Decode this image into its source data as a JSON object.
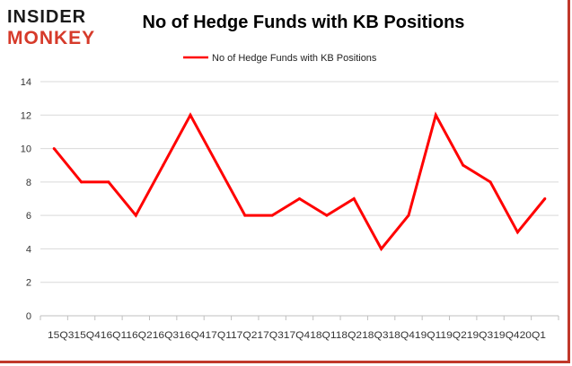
{
  "logo": {
    "line1": "INSIDER",
    "line2": "MONKEY",
    "colors": {
      "text": "#1a1a1a",
      "accent": "#d63a2a"
    }
  },
  "chart_data": {
    "type": "line",
    "title": "No of Hedge Funds with KB Positions",
    "xlabel": "",
    "ylabel": "",
    "categories": [
      "2015Q3",
      "2015Q4",
      "2016Q1",
      "2016Q2",
      "2016Q3",
      "2016Q4",
      "2017Q1",
      "2017Q2",
      "2017Q3",
      "2017Q4",
      "2018Q1",
      "2018Q2",
      "2018Q3",
      "2018Q4",
      "2019Q1",
      "2019Q2",
      "2019Q3",
      "2019Q4",
      "2020Q1"
    ],
    "x_axis_label_text": "15Q315Q416Q116Q216Q316Q417Q117Q217Q317Q418Q118Q218Q318Q419Q119Q219Q319Q420Q1",
    "series": [
      {
        "name": "No of Hedge Funds with KB Positions",
        "color": "#ff0000",
        "values": [
          10,
          8,
          8,
          6,
          9,
          12,
          9,
          6,
          6,
          7,
          6,
          7,
          4,
          6,
          12,
          9,
          8,
          5,
          7
        ]
      }
    ],
    "ylim": [
      0,
      14
    ],
    "yticks": [
      0,
      2,
      4,
      6,
      8,
      10,
      12,
      14
    ],
    "grid": "horizontal",
    "legend": "top-center"
  }
}
